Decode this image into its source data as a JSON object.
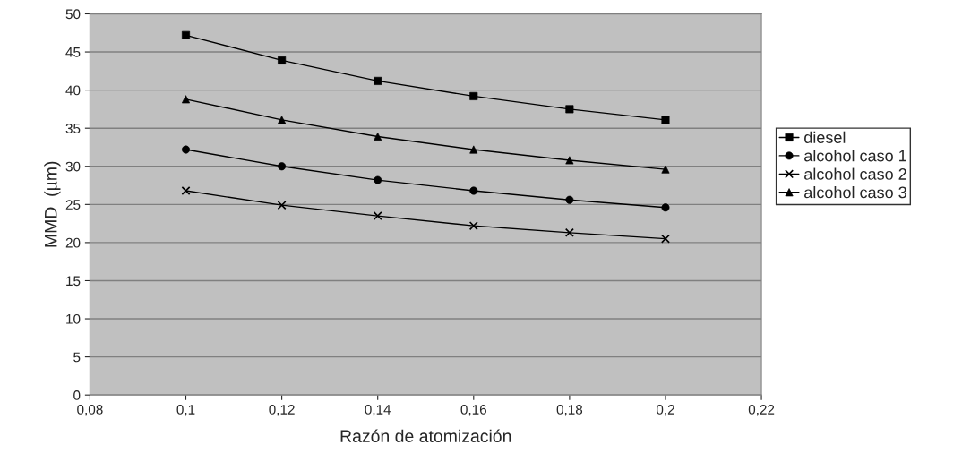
{
  "chart_data": {
    "type": "line",
    "xlabel": "Razón de atomización",
    "ylabel": "MMD  (µm)",
    "x": [
      0.1,
      0.12,
      0.14,
      0.16,
      0.18,
      0.2
    ],
    "series": [
      {
        "name": "diesel",
        "color": "#000000",
        "marker": "square",
        "values": [
          47.2,
          43.9,
          41.2,
          39.2,
          37.5,
          36.1
        ]
      },
      {
        "name": "alcohol caso 1",
        "color": "#000000",
        "marker": "circle",
        "values": [
          32.2,
          30.0,
          28.2,
          26.8,
          25.6,
          24.6
        ]
      },
      {
        "name": "alcohol caso 2",
        "color": "#000000",
        "marker": "cross",
        "values": [
          26.8,
          24.9,
          23.5,
          22.2,
          21.3,
          20.5
        ]
      },
      {
        "name": "alcohol caso 3",
        "color": "#000000",
        "marker": "triangle",
        "values": [
          38.8,
          36.1,
          33.9,
          32.2,
          30.8,
          29.6
        ]
      }
    ],
    "xlim": [
      0.08,
      0.22
    ],
    "xticks": [
      {
        "value": 0.08,
        "label": "0,08"
      },
      {
        "value": 0.1,
        "label": "0,1"
      },
      {
        "value": 0.12,
        "label": "0,12"
      },
      {
        "value": 0.14,
        "label": "0,14"
      },
      {
        "value": 0.16,
        "label": "0,16"
      },
      {
        "value": 0.18,
        "label": "0,18"
      },
      {
        "value": 0.2,
        "label": "0,2"
      },
      {
        "value": 0.22,
        "label": "0,22"
      }
    ],
    "ylim": [
      0,
      50
    ],
    "yticks": [
      0,
      5,
      10,
      15,
      20,
      25,
      30,
      35,
      40,
      45,
      50
    ],
    "grid": "y",
    "legend": "right",
    "line_style": "solid"
  }
}
